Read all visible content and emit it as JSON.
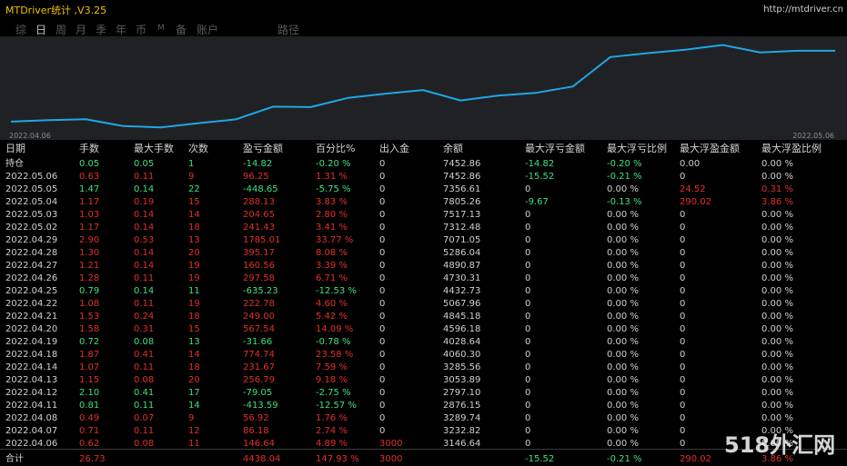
{
  "window": {
    "title": "MTDriver统计 ,V3.25",
    "url": "http://mtdriver.cn"
  },
  "tabs": [
    "综",
    "日",
    "周",
    "月",
    "季",
    "年",
    "币",
    "M",
    "备",
    "账户",
    "路径"
  ],
  "active_tab": 1,
  "chart": {
    "start_date": "2022.04.06",
    "end_date": "2022.05.06",
    "line_color": "#1ea7e6",
    "balance": [
      3146.64,
      3232.82,
      3289.74,
      2876.15,
      2797.1,
      3053.89,
      3285.56,
      4060.3,
      4028.64,
      4596.18,
      4845.18,
      5067.96,
      4432.73,
      4730.31,
      4890.87,
      5286.04,
      7071.05,
      7312.48,
      7517.13,
      7805.26,
      7356.61,
      7452.86,
      7452.86
    ]
  },
  "columns": [
    "日期",
    "手数",
    "最大手数",
    "次数",
    "盈亏金额",
    "百分比%",
    "出入金",
    "余额",
    "最大浮亏金额",
    "最大浮亏比例",
    "最大浮盈金额",
    "最大浮盈比例"
  ],
  "rows": [
    {
      "date": "持仓",
      "lots": "0.05",
      "maxlots": "0.05",
      "count": "1",
      "pnl": "-14.82",
      "pct": "-0.20 %",
      "io": "0",
      "bal": "7452.86",
      "ml": "-14.82",
      "mlp": "-0.20 %",
      "mp": "0.00",
      "mpp": "0.00 %",
      "color": "green"
    },
    {
      "date": "2022.05.06",
      "lots": "0.63",
      "maxlots": "0.11",
      "count": "9",
      "pnl": "96.25",
      "pct": "1.31 %",
      "io": "0",
      "bal": "7452.86",
      "ml": "-15.52",
      "mlp": "-0.21 %",
      "mp": "0",
      "mpp": "0.00 %",
      "color": "red"
    },
    {
      "date": "2022.05.05",
      "lots": "1.47",
      "maxlots": "0.14",
      "count": "22",
      "pnl": "-448.65",
      "pct": "-5.75 %",
      "io": "0",
      "bal": "7356.61",
      "ml": "0",
      "mlp": "0.00 %",
      "mp": "24.52",
      "mpp": "0.31 %",
      "color": "green"
    },
    {
      "date": "2022.05.04",
      "lots": "1.17",
      "maxlots": "0.19",
      "count": "15",
      "pnl": "288.13",
      "pct": "3.83 %",
      "io": "0",
      "bal": "7805.26",
      "ml": "-9.67",
      "mlp": "-0.13 %",
      "mp": "290.02",
      "mpp": "3.86 %",
      "color": "red"
    },
    {
      "date": "2022.05.03",
      "lots": "1.03",
      "maxlots": "0.14",
      "count": "14",
      "pnl": "204.65",
      "pct": "2.80 %",
      "io": "0",
      "bal": "7517.13",
      "ml": "0",
      "mlp": "0.00 %",
      "mp": "0",
      "mpp": "0.00 %",
      "color": "red"
    },
    {
      "date": "2022.05.02",
      "lots": "1.17",
      "maxlots": "0.14",
      "count": "18",
      "pnl": "241.43",
      "pct": "3.41 %",
      "io": "0",
      "bal": "7312.48",
      "ml": "0",
      "mlp": "0.00 %",
      "mp": "0",
      "mpp": "0.00 %",
      "color": "red"
    },
    {
      "date": "2022.04.29",
      "lots": "2.90",
      "maxlots": "0.53",
      "count": "13",
      "pnl": "1785.01",
      "pct": "33.77 %",
      "io": "0",
      "bal": "7071.05",
      "ml": "0",
      "mlp": "0.00 %",
      "mp": "0",
      "mpp": "0.00 %",
      "color": "red"
    },
    {
      "date": "2022.04.28",
      "lots": "1.30",
      "maxlots": "0.14",
      "count": "20",
      "pnl": "395.17",
      "pct": "8.08 %",
      "io": "0",
      "bal": "5286.04",
      "ml": "0",
      "mlp": "0.00 %",
      "mp": "0",
      "mpp": "0.00 %",
      "color": "red"
    },
    {
      "date": "2022.04.27",
      "lots": "1.21",
      "maxlots": "0.14",
      "count": "19",
      "pnl": "160.56",
      "pct": "3.39 %",
      "io": "0",
      "bal": "4890.87",
      "ml": "0",
      "mlp": "0.00 %",
      "mp": "0",
      "mpp": "0.00 %",
      "color": "red"
    },
    {
      "date": "2022.04.26",
      "lots": "1.28",
      "maxlots": "0.11",
      "count": "19",
      "pnl": "297.58",
      "pct": "6.71 %",
      "io": "0",
      "bal": "4730.31",
      "ml": "0",
      "mlp": "0.00 %",
      "mp": "0",
      "mpp": "0.00 %",
      "color": "red"
    },
    {
      "date": "2022.04.25",
      "lots": "0.79",
      "maxlots": "0.14",
      "count": "11",
      "pnl": "-635.23",
      "pct": "-12.53 %",
      "io": "0",
      "bal": "4432.73",
      "ml": "0",
      "mlp": "0.00 %",
      "mp": "0",
      "mpp": "0.00 %",
      "color": "green"
    },
    {
      "date": "2022.04.22",
      "lots": "1.08",
      "maxlots": "0.11",
      "count": "19",
      "pnl": "222.78",
      "pct": "4.60 %",
      "io": "0",
      "bal": "5067.96",
      "ml": "0",
      "mlp": "0.00 %",
      "mp": "0",
      "mpp": "0.00 %",
      "color": "red"
    },
    {
      "date": "2022.04.21",
      "lots": "1.53",
      "maxlots": "0.24",
      "count": "18",
      "pnl": "249.00",
      "pct": "5.42 %",
      "io": "0",
      "bal": "4845.18",
      "ml": "0",
      "mlp": "0.00 %",
      "mp": "0",
      "mpp": "0.00 %",
      "color": "red"
    },
    {
      "date": "2022.04.20",
      "lots": "1.58",
      "maxlots": "0.31",
      "count": "15",
      "pnl": "567.54",
      "pct": "14.09 %",
      "io": "0",
      "bal": "4596.18",
      "ml": "0",
      "mlp": "0.00 %",
      "mp": "0",
      "mpp": "0.00 %",
      "color": "red"
    },
    {
      "date": "2022.04.19",
      "lots": "0.72",
      "maxlots": "0.08",
      "count": "13",
      "pnl": "-31.66",
      "pct": "-0.78 %",
      "io": "0",
      "bal": "4028.64",
      "ml": "0",
      "mlp": "0.00 %",
      "mp": "0",
      "mpp": "0.00 %",
      "color": "green"
    },
    {
      "date": "2022.04.18",
      "lots": "1.87",
      "maxlots": "0.41",
      "count": "14",
      "pnl": "774.74",
      "pct": "23.58 %",
      "io": "0",
      "bal": "4060.30",
      "ml": "0",
      "mlp": "0.00 %",
      "mp": "0",
      "mpp": "0.00 %",
      "color": "red"
    },
    {
      "date": "2022.04.14",
      "lots": "1.07",
      "maxlots": "0.11",
      "count": "18",
      "pnl": "231.67",
      "pct": "7.59 %",
      "io": "0",
      "bal": "3285.56",
      "ml": "0",
      "mlp": "0.00 %",
      "mp": "0",
      "mpp": "0.00 %",
      "color": "red"
    },
    {
      "date": "2022.04.13",
      "lots": "1.15",
      "maxlots": "0.08",
      "count": "20",
      "pnl": "256.79",
      "pct": "9.18 %",
      "io": "0",
      "bal": "3053.89",
      "ml": "0",
      "mlp": "0.00 %",
      "mp": "0",
      "mpp": "0.00 %",
      "color": "red"
    },
    {
      "date": "2022.04.12",
      "lots": "2.10",
      "maxlots": "0.41",
      "count": "17",
      "pnl": "-79.05",
      "pct": "-2.75 %",
      "io": "0",
      "bal": "2797.10",
      "ml": "0",
      "mlp": "0.00 %",
      "mp": "0",
      "mpp": "0.00 %",
      "color": "green"
    },
    {
      "date": "2022.04.11",
      "lots": "0.81",
      "maxlots": "0.11",
      "count": "14",
      "pnl": "-413.59",
      "pct": "-12.57 %",
      "io": "0",
      "bal": "2876.15",
      "ml": "0",
      "mlp": "0.00 %",
      "mp": "0",
      "mpp": "0.00 %",
      "color": "green"
    },
    {
      "date": "2022.04.08",
      "lots": "0.49",
      "maxlots": "0.07",
      "count": "9",
      "pnl": "56.92",
      "pct": "1.76 %",
      "io": "0",
      "bal": "3289.74",
      "ml": "0",
      "mlp": "0.00 %",
      "mp": "0",
      "mpp": "0.00 %",
      "color": "red"
    },
    {
      "date": "2022.04.07",
      "lots": "0.71",
      "maxlots": "0.11",
      "count": "12",
      "pnl": "86.18",
      "pct": "2.74 %",
      "io": "0",
      "bal": "3232.82",
      "ml": "0",
      "mlp": "0.00 %",
      "mp": "0",
      "mpp": "0.00 %",
      "color": "red"
    },
    {
      "date": "2022.04.06",
      "lots": "0.62",
      "maxlots": "0.08",
      "count": "11",
      "pnl": "146.64",
      "pct": "4.89 %",
      "io": "3000",
      "bal": "3146.64",
      "ml": "0",
      "mlp": "0.00 %",
      "mp": "0",
      "mpp": "0.00 %",
      "color": "red"
    }
  ],
  "total": {
    "date": "合计",
    "lots": "26.73",
    "maxlots": "",
    "count": "",
    "pnl": "4438.04",
    "pct": "147.93 %",
    "io": "3000",
    "bal": "",
    "ml": "-15.52",
    "mlp": "-0.21 %",
    "mp": "290.02",
    "mpp": "3.86 %"
  },
  "watermark": "518外汇网"
}
